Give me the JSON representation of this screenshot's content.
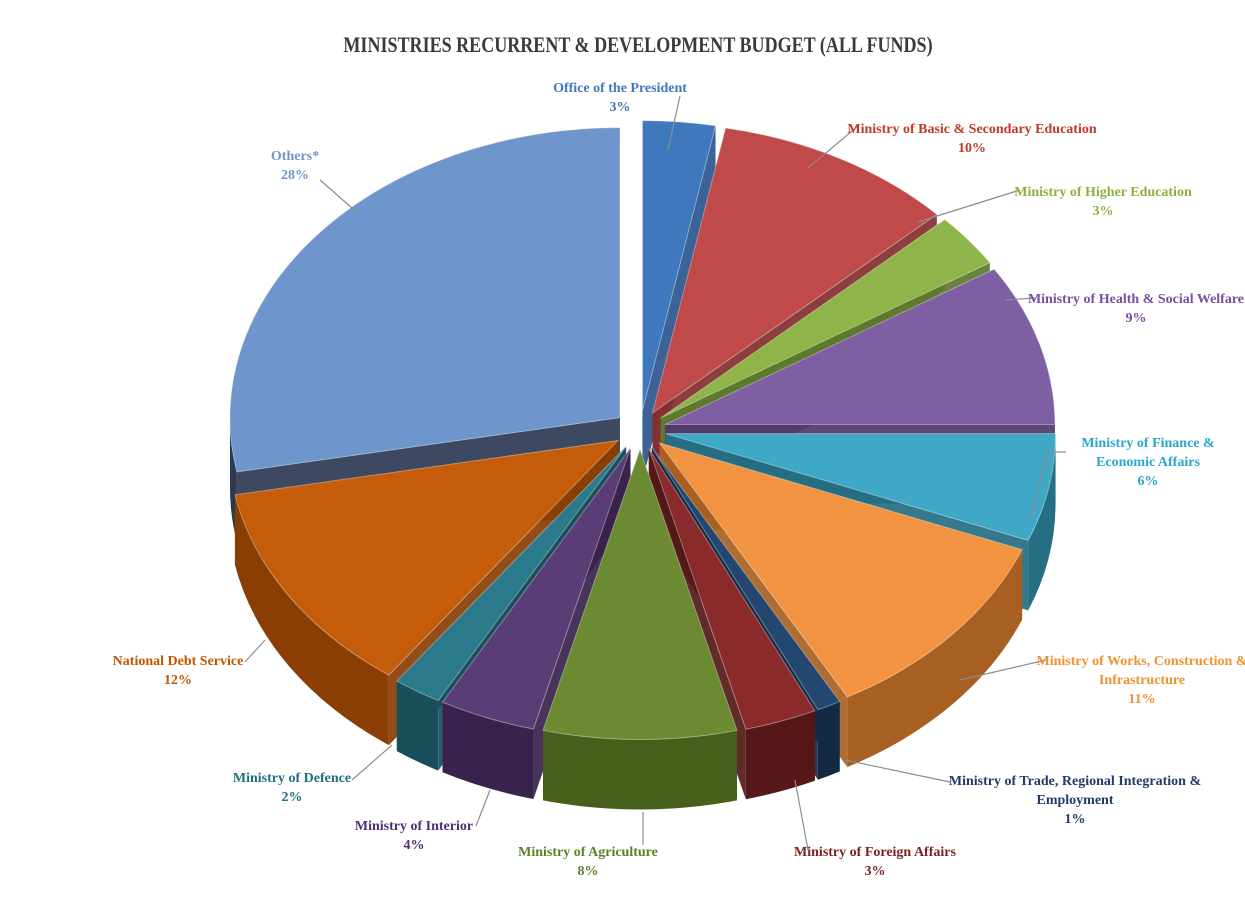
{
  "chart_data": {
    "type": "pie",
    "title": "MINISTRIES RECURRENT & DEVELOPMENT  BUDGET  (ALL FUNDS)",
    "exploded": true,
    "style": "3d",
    "slices": [
      {
        "name": "Office of the President",
        "lines": [
          "Office of the President"
        ],
        "value": 3,
        "percent_label": "3%",
        "color": "#3f78bd",
        "side": "#2a568d",
        "label_color": "#3f78bd"
      },
      {
        "name": "Ministry of Basic & Secondary Education",
        "lines": [
          "Ministry of Basic & Secondary Education"
        ],
        "value": 10,
        "percent_label": "10%",
        "color": "#c0494a",
        "side": "#832f30",
        "label_color": "#c0392b"
      },
      {
        "name": "Ministry of Higher Education",
        "lines": [
          "Ministry of Higher Education"
        ],
        "value": 3,
        "percent_label": "3%",
        "color": "#8fb54a",
        "side": "#5d7a2d",
        "label_color": "#8db040"
      },
      {
        "name": "Ministry of Health & Social Welfare",
        "lines": [
          "Ministry of Health & Social Welfare"
        ],
        "value": 9,
        "percent_label": "9%",
        "color": "#7e5fa3",
        "side": "#4f3a68",
        "label_color": "#7a4fa3"
      },
      {
        "name": "Ministry of Finance & Economic Affairs",
        "lines": [
          "Ministry of Finance &",
          "Economic Affairs"
        ],
        "value": 6,
        "percent_label": "6%",
        "color": "#3fa8c6",
        "side": "#256e83",
        "label_color": "#2aa6c9"
      },
      {
        "name": "Ministry of Works, Construction & Infrastructure",
        "lines": [
          "Ministry of Works, Construction &",
          "Infrastructure"
        ],
        "value": 11,
        "percent_label": "11%",
        "color": "#f29342",
        "side": "#a85f22",
        "label_color": "#f0922e"
      },
      {
        "name": "Ministry of Trade, Regional Integration & Employment",
        "lines": [
          "Ministry of Trade, Regional Integration &",
          "Employment"
        ],
        "value": 1,
        "percent_label": "1%",
        "color": "#24476f",
        "side": "#142a44",
        "label_color": "#1f3b66"
      },
      {
        "name": "Ministry of Foreign Affairs",
        "lines": [
          "Ministry of  Foreign Affairs"
        ],
        "value": 3,
        "percent_label": "3%",
        "color": "#8a2a2a",
        "side": "#561818",
        "label_color": "#7b1f1f"
      },
      {
        "name": "Ministry of Agriculture",
        "lines": [
          "Ministry of  Agriculture"
        ],
        "value": 8,
        "percent_label": "8%",
        "color": "#6b8a31",
        "side": "#46601c",
        "label_color": "#5e7f24"
      },
      {
        "name": "Ministry of Interior",
        "lines": [
          "Ministry of Interior"
        ],
        "value": 4,
        "percent_label": "4%",
        "color": "#5a3c77",
        "side": "#38234d",
        "label_color": "#4f2f73"
      },
      {
        "name": "Ministry of Defence",
        "lines": [
          "Ministry of  Defence"
        ],
        "value": 2,
        "percent_label": "2%",
        "color": "#2a7a8c",
        "side": "#194f5b",
        "label_color": "#1f6f80"
      },
      {
        "name": "National Debt Service",
        "lines": [
          "National Debt Service"
        ],
        "value": 12,
        "percent_label": "12%",
        "color": "#c45c0a",
        "side": "#8a3e04",
        "label_color": "#c25600"
      },
      {
        "name": "Others*",
        "lines": [
          "Others*"
        ],
        "value": 28,
        "percent_label": "28%",
        "color": "#6e96cc",
        "side": "#2b3a52",
        "label_color": "#6f96cc"
      }
    ]
  }
}
